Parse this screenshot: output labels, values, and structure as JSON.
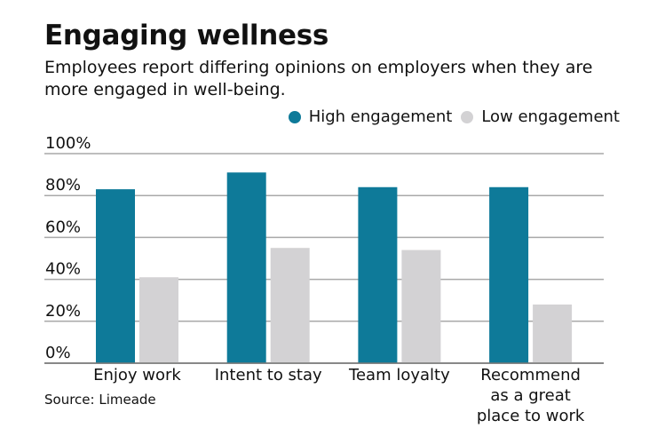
{
  "chart_data": {
    "type": "bar",
    "title": "Engaging wellness",
    "subtitle": "Employees report differing opinions on employers when they are more engaged in well-being.",
    "categories": [
      "Enjoy work",
      "Intent to stay",
      "Team loyalty",
      "Recommend as a great place to work"
    ],
    "category_lines": [
      [
        "Enjoy work"
      ],
      [
        "Intent to stay"
      ],
      [
        "Team loyalty"
      ],
      [
        "Recommend",
        "as a great",
        "place to work"
      ]
    ],
    "series": [
      {
        "name": "High engagement",
        "color": "#0e7a99",
        "values": [
          83,
          91,
          84,
          84
        ]
      },
      {
        "name": "Low engagement",
        "color": "#d3d2d4",
        "values": [
          41,
          55,
          54,
          28
        ]
      }
    ],
    "yticks": [
      0,
      20,
      40,
      60,
      80,
      100
    ],
    "ytick_labels": [
      "0%",
      "20%",
      "40%",
      "60%",
      "80%",
      "100%"
    ],
    "ylim": [
      0,
      100
    ],
    "xlabel": "",
    "ylabel": "",
    "grid": true,
    "legend_position": "top-right",
    "source": "Source: Limeade"
  }
}
